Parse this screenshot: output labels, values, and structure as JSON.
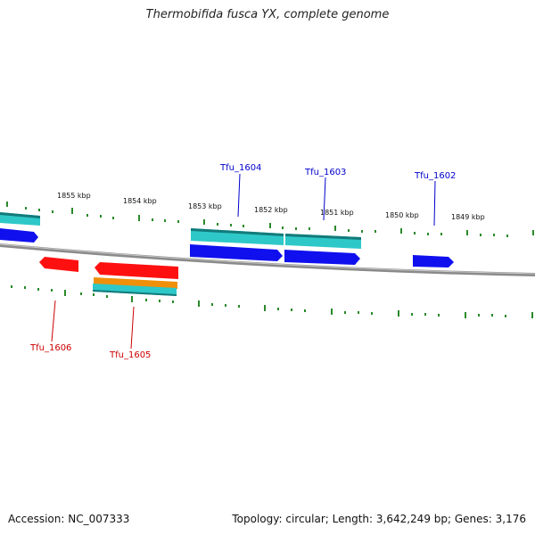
{
  "title": "Thermobifida fusca YX, complete genome",
  "footer": {
    "accession": "Accession: NC_007333",
    "summary": "Topology: circular; Length: 3,642,249 bp; Genes: 3,176"
  },
  "ruler_labels": [
    "1855 kbp",
    "1854 kbp",
    "1853 kbp",
    "1852 kbp",
    "1851 kbp",
    "1850 kbp",
    "1849 kbp"
  ],
  "gene_labels": {
    "plus": [
      "Tfu_1604",
      "Tfu_1603",
      "Tfu_1602"
    ],
    "minus": [
      "Tfu_1606",
      "Tfu_1605"
    ]
  },
  "colors": {
    "plus_strand": "#0000cc",
    "minus_strand": "#cc0000",
    "cds": "#2ec8c8",
    "misc": "#f0900a",
    "gene_minus": "#ff1010",
    "gene_plus": "#1010ee",
    "ticks": "#2a8a2a",
    "backbone": "#8a8a8a"
  }
}
